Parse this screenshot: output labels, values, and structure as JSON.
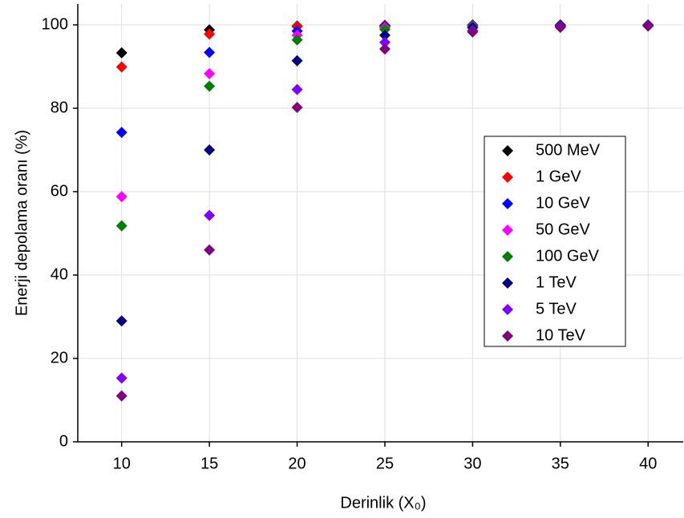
{
  "chart_data": {
    "type": "scatter",
    "xlabel": "Derinlik (X₀)",
    "ylabel": "Enerji depolama oranı (%)",
    "x": [
      10,
      15,
      20,
      25,
      30,
      35,
      40
    ],
    "series": [
      {
        "name": "500 MeV",
        "color": "#000000",
        "values": [
          93.3,
          98.8,
          99.7,
          99.9,
          100,
          100,
          100
        ]
      },
      {
        "name": "1 GeV",
        "color": "#ff0000",
        "values": [
          89.9,
          97.8,
          99.6,
          99.8,
          99.9,
          99.9,
          100
        ]
      },
      {
        "name": "10 GeV",
        "color": "#0000ff",
        "values": [
          74.2,
          93.4,
          98.5,
          99.6,
          99.8,
          99.9,
          100
        ]
      },
      {
        "name": "50 GeV",
        "color": "#ff00ff",
        "values": [
          58.8,
          88.3,
          97.5,
          99.3,
          99.7,
          99.8,
          99.9
        ]
      },
      {
        "name": "100 GeV",
        "color": "#008000",
        "values": [
          51.8,
          85.3,
          96.4,
          98.9,
          99.6,
          99.8,
          99.9
        ]
      },
      {
        "name": "1 TeV",
        "color": "#000080",
        "values": [
          29,
          70,
          91.4,
          97.5,
          99.3,
          99.7,
          99.8
        ]
      },
      {
        "name": "5 TeV",
        "color": "#8000ff",
        "values": [
          15.3,
          54.3,
          84.5,
          95.8,
          98.6,
          99.6,
          99.8
        ]
      },
      {
        "name": "10 TeV",
        "color": "#800080",
        "values": [
          11,
          46,
          80.2,
          94.2,
          98.3,
          99.4,
          99.7
        ]
      }
    ],
    "xlim": [
      7.5,
      42
    ],
    "ylim": [
      0,
      105
    ],
    "xticks": [
      10,
      15,
      20,
      25,
      30,
      35,
      40
    ],
    "yticks": [
      0,
      20,
      40,
      60,
      80,
      100
    ],
    "grid": true,
    "legend": "right"
  }
}
